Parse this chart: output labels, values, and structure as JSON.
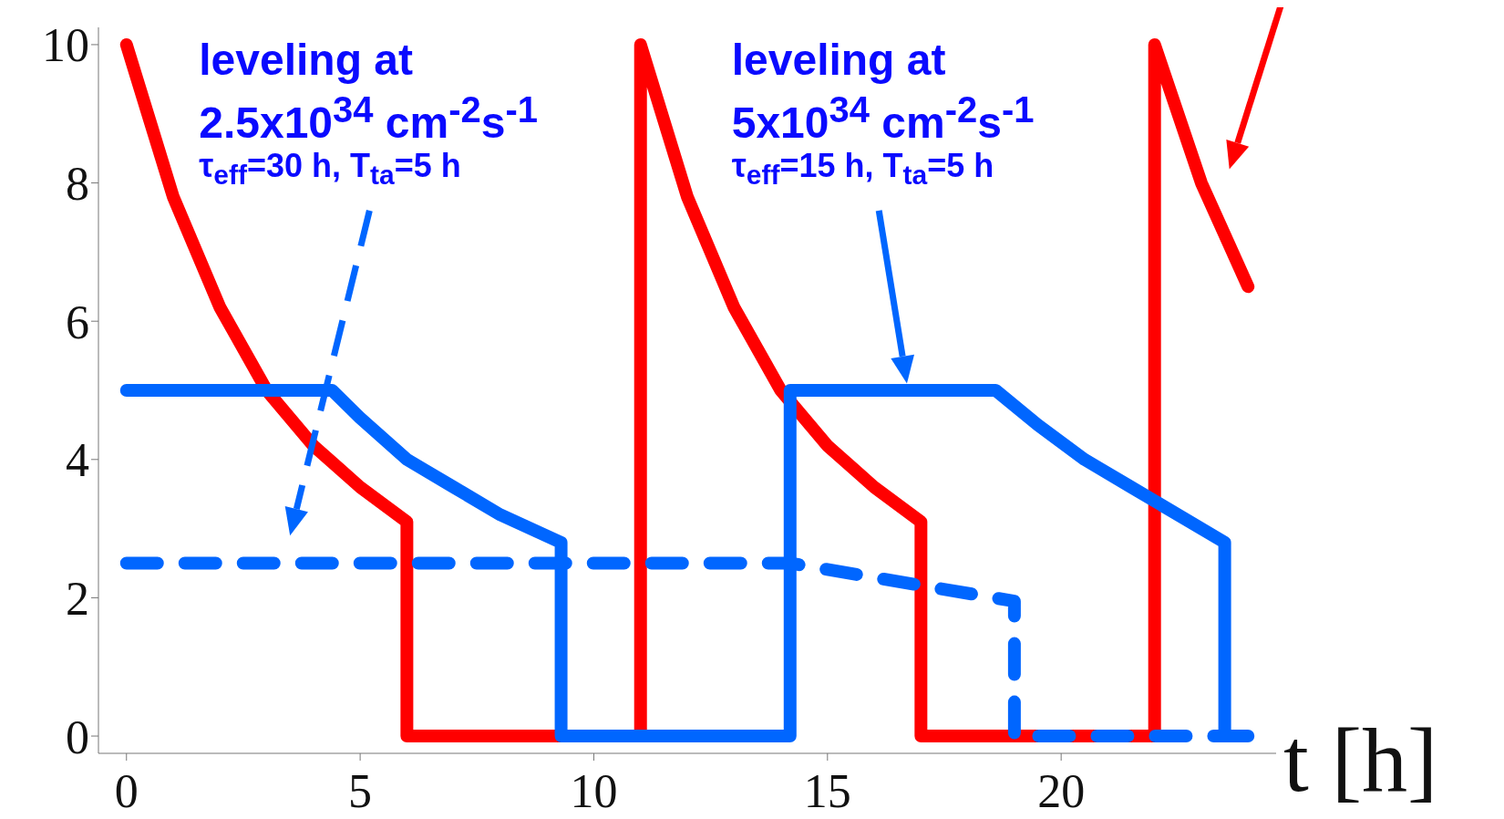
{
  "chart_data": {
    "type": "line",
    "xlabel": "t [h]",
    "xlim": [
      -0.6,
      24.6
    ],
    "ylim": [
      -0.25,
      10.25
    ],
    "xticks": [
      0,
      5,
      10,
      15,
      20
    ],
    "yticks": [
      0,
      2,
      4,
      6,
      8,
      10
    ],
    "marker": "none",
    "series": [
      {
        "color": "#ff0000",
        "line_style": "solid",
        "x": [
          0,
          0.5,
          1,
          2,
          3,
          4,
          5,
          6,
          6,
          11,
          11,
          12,
          13,
          14,
          15,
          16,
          17,
          17,
          22,
          22,
          23,
          24
        ],
        "values": [
          10,
          8.9,
          7.8,
          6.2,
          5.0,
          4.2,
          3.6,
          3.1,
          0,
          0,
          10,
          7.8,
          6.2,
          5.0,
          4.2,
          3.6,
          3.1,
          0,
          0,
          10,
          8.0,
          6.5
        ]
      },
      {
        "color": "#0066ff",
        "line_style": "solid",
        "x": [
          0,
          4.4,
          5,
          6,
          7,
          8,
          9.3,
          9.3,
          14.2,
          14.2,
          18.6,
          19.5,
          20.5,
          21.5,
          23.5,
          23.5,
          24
        ],
        "values": [
          5,
          5,
          4.6,
          4.0,
          3.6,
          3.2,
          2.8,
          0,
          0,
          5,
          5,
          4.5,
          4.0,
          3.6,
          2.8,
          0,
          0
        ]
      },
      {
        "color": "#0066ff",
        "line_style": "dashed",
        "x": [
          0,
          14.2,
          19,
          19,
          24
        ],
        "values": [
          2.5,
          2.5,
          1.95,
          0,
          0
        ]
      }
    ],
    "annotations": [
      "leveling at",
      "2.5x10$^{34}$ cm$^{-2}$s$^{-1}$",
      "τ$_{eff}$=30 h, T$_{ta}$=5 h",
      "leveling at",
      "5x10$^{34}$ cm$^{-2}$s$^{-1}$",
      "τ$_{eff}$=15 h, T$_{ta}$=5 h"
    ]
  }
}
